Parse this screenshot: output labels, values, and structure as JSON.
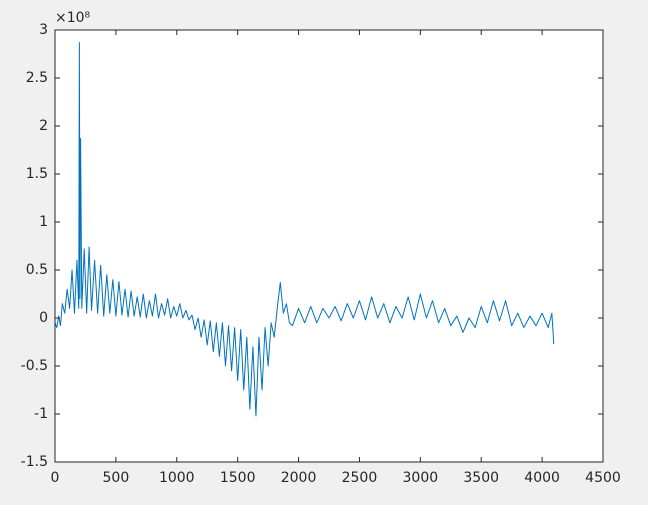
{
  "chart_data": {
    "type": "line",
    "y_multiplier": "×10⁸",
    "xlim": [
      0,
      4500
    ],
    "xticks": [
      0,
      500,
      1000,
      1500,
      2000,
      2500,
      3000,
      3500,
      4000,
      4500
    ],
    "ylim": [
      -1.5,
      3
    ],
    "yticks": [
      -1.5,
      -1,
      -0.5,
      0,
      0.5,
      1,
      1.5,
      2,
      2.5,
      3
    ],
    "grid": false,
    "x": [
      0,
      15,
      30,
      45,
      60,
      80,
      100,
      120,
      140,
      160,
      180,
      195,
      200,
      205,
      210,
      220,
      240,
      260,
      280,
      300,
      325,
      350,
      375,
      400,
      425,
      450,
      475,
      500,
      525,
      550,
      575,
      600,
      625,
      650,
      675,
      700,
      725,
      750,
      775,
      800,
      825,
      850,
      875,
      900,
      925,
      950,
      975,
      1000,
      1025,
      1050,
      1075,
      1100,
      1125,
      1150,
      1175,
      1200,
      1225,
      1250,
      1275,
      1300,
      1325,
      1350,
      1375,
      1400,
      1425,
      1450,
      1475,
      1500,
      1525,
      1550,
      1575,
      1600,
      1625,
      1650,
      1675,
      1700,
      1725,
      1750,
      1775,
      1800,
      1825,
      1850,
      1875,
      1900,
      1925,
      1950,
      2000,
      2050,
      2100,
      2150,
      2200,
      2250,
      2300,
      2350,
      2400,
      2450,
      2500,
      2550,
      2600,
      2650,
      2700,
      2750,
      2800,
      2850,
      2900,
      2950,
      3000,
      3050,
      3100,
      3150,
      3200,
      3250,
      3300,
      3350,
      3400,
      3450,
      3500,
      3550,
      3600,
      3650,
      3700,
      3750,
      3800,
      3850,
      3900,
      3950,
      4000,
      4050,
      4080,
      4096
    ],
    "series": [
      {
        "color": "#0072bd",
        "values": [
          -0.05,
          -0.1,
          0.02,
          -0.08,
          0.15,
          0.05,
          0.3,
          0.1,
          0.5,
          0.05,
          0.6,
          0.1,
          2.87,
          0.2,
          1.87,
          0.1,
          0.72,
          0.05,
          0.74,
          0.08,
          0.6,
          0.05,
          0.55,
          0.02,
          0.45,
          0.05,
          0.4,
          0.02,
          0.38,
          0.03,
          0.3,
          0.01,
          0.28,
          0.02,
          0.22,
          0.01,
          0.25,
          0.0,
          0.18,
          0.02,
          0.25,
          0.0,
          0.15,
          0.03,
          0.2,
          0.0,
          0.12,
          0.02,
          0.15,
          0.0,
          0.08,
          -0.02,
          0.03,
          -0.12,
          0.0,
          -0.2,
          -0.02,
          -0.28,
          -0.03,
          -0.35,
          -0.05,
          -0.4,
          -0.05,
          -0.5,
          -0.08,
          -0.55,
          -0.1,
          -0.65,
          -0.12,
          -0.75,
          -0.2,
          -0.95,
          -0.3,
          -1.02,
          -0.2,
          -0.75,
          -0.1,
          -0.5,
          -0.05,
          -0.2,
          0.1,
          0.37,
          0.05,
          0.15,
          -0.05,
          -0.08,
          0.1,
          -0.05,
          0.12,
          -0.05,
          0.1,
          0.0,
          0.12,
          -0.03,
          0.15,
          0.0,
          0.18,
          -0.02,
          0.22,
          0.0,
          0.15,
          -0.05,
          0.12,
          0.0,
          0.22,
          -0.02,
          0.25,
          0.0,
          0.18,
          -0.05,
          0.1,
          -0.08,
          0.02,
          -0.15,
          0.0,
          -0.1,
          0.12,
          -0.05,
          0.18,
          -0.03,
          0.18,
          -0.08,
          0.05,
          -0.1,
          0.02,
          -0.08,
          0.05,
          -0.1,
          0.05,
          -0.27
        ]
      }
    ]
  }
}
